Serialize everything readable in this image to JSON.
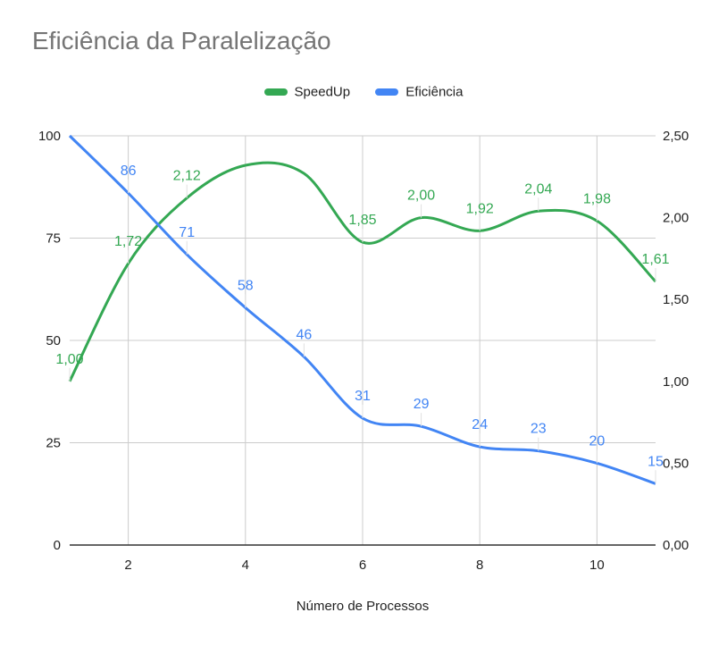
{
  "chart_data": {
    "type": "line",
    "title": "Eficiência da Paralelização",
    "xlabel": "Número de Processos",
    "ylabel_left": "",
    "ylabel_right": "",
    "x": [
      1,
      2,
      3,
      4,
      5,
      6,
      7,
      8,
      9,
      10,
      11
    ],
    "xlim": [
      1,
      11
    ],
    "x_ticks": [
      2,
      4,
      6,
      8,
      10
    ],
    "x_tick_labels": [
      "2",
      "4",
      "6",
      "8",
      "10"
    ],
    "ylim_left": [
      0,
      100
    ],
    "y_left_ticks": [
      0,
      25,
      50,
      75,
      100
    ],
    "y_left_tick_labels": [
      "0",
      "25",
      "50",
      "75",
      "100"
    ],
    "ylim_right": [
      0,
      2.5
    ],
    "y_right_ticks": [
      0,
      0.5,
      1.0,
      1.5,
      2.0,
      2.5
    ],
    "y_right_tick_labels": [
      "0,00",
      "0,50",
      "1,00",
      "1,50",
      "2,00",
      "2,50"
    ],
    "grid": true,
    "legend_position": "top",
    "series": [
      {
        "name": "SpeedUp",
        "axis": "right",
        "color": "#34a853",
        "values": [
          1.0,
          1.72,
          2.12,
          2.32,
          2.27,
          1.85,
          2.0,
          1.92,
          2.04,
          1.98,
          1.61
        ],
        "data_labels": [
          "1,00",
          "1,72",
          "2,12",
          "",
          "",
          "1,85",
          "2,00",
          "1,92",
          "2,04",
          "1,98",
          "1,61"
        ]
      },
      {
        "name": "Eficiência",
        "axis": "left",
        "color": "#4285f4",
        "values": [
          100,
          86,
          71,
          58,
          46,
          31,
          29,
          24,
          23,
          20,
          15
        ],
        "data_labels": [
          "",
          "86",
          "71",
          "58",
          "46",
          "31",
          "29",
          "24",
          "23",
          "20",
          "15"
        ]
      }
    ]
  }
}
